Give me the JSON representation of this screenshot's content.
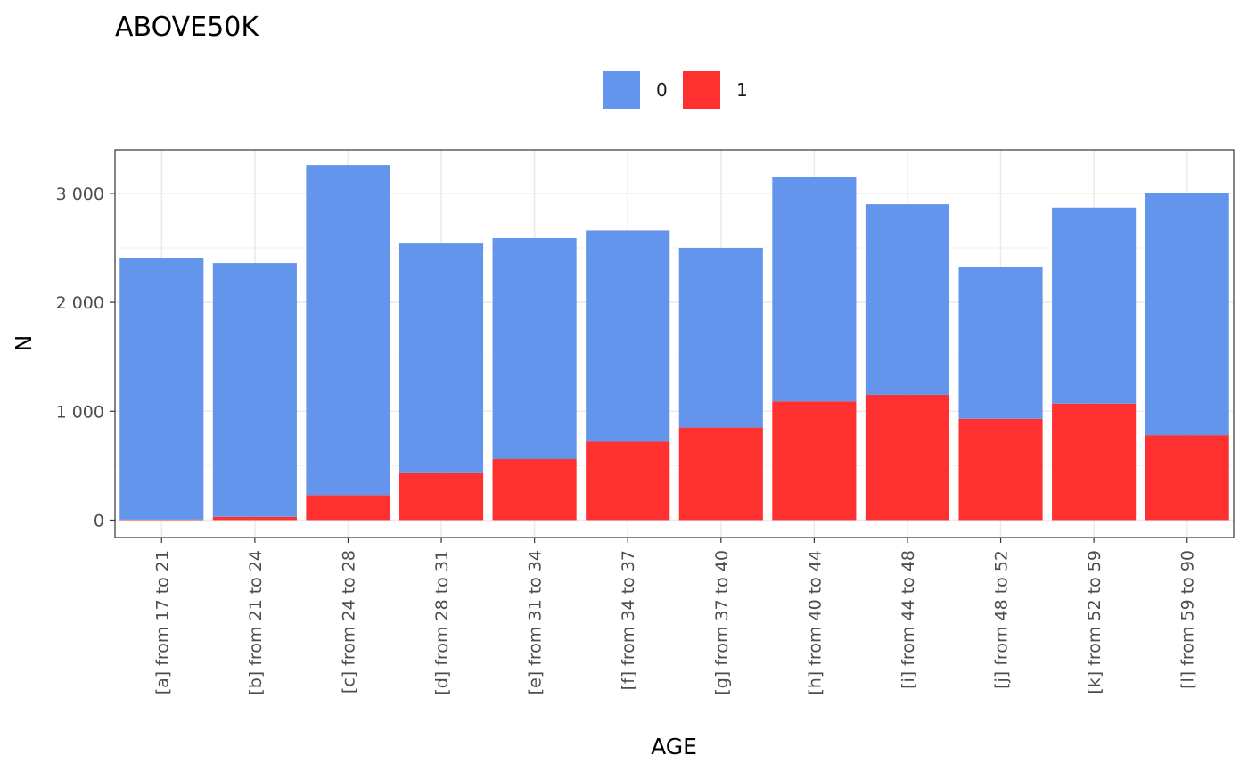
{
  "chart_data": {
    "type": "bar",
    "stacked": true,
    "title": "ABOVE50K",
    "xlabel": "AGE",
    "ylabel": "N",
    "ylim": [
      -160,
      3400
    ],
    "yticks": [
      0,
      1000,
      2000,
      3000
    ],
    "ytick_labels": [
      "0",
      "1 000",
      "2 000",
      "3 000"
    ],
    "grid": true,
    "legend_position": "top",
    "categories": [
      "[a] from 17 to 21",
      "[b] from 21 to 24",
      "[c] from 24 to 28",
      "[d] from 28 to 31",
      "[e] from 31 to 34",
      "[f] from 34 to 37",
      "[g] from 37 to 40",
      "[h] from 40 to 44",
      "[i] from 44 to 48",
      "[j] from 48 to 52",
      "[k] from 52 to 59",
      "[l] from 59 to 90"
    ],
    "series": [
      {
        "name": "1",
        "color": "#ff3030",
        "values": [
          5,
          30,
          230,
          430,
          560,
          720,
          850,
          1090,
          1150,
          930,
          1070,
          780
        ]
      },
      {
        "name": "0",
        "color": "#6495ed",
        "values": [
          2405,
          2330,
          3030,
          2110,
          2030,
          1940,
          1650,
          2060,
          1750,
          1390,
          1800,
          2220
        ]
      }
    ],
    "legend_order": [
      "0",
      "1"
    ]
  }
}
